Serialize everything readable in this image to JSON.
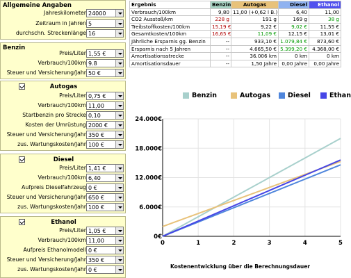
{
  "general": {
    "title": "Allgemeine Angaben",
    "rows": [
      {
        "label": "Jahreskilometer",
        "value": "24000"
      },
      {
        "label": "Zeitraum in Jahren",
        "value": "5"
      },
      {
        "label": "durchschn. Streckenlänge",
        "value": "16"
      }
    ]
  },
  "benzin": {
    "title": "Benzin",
    "rows": [
      {
        "label": "Preis/Liter",
        "value": "1,55 €"
      },
      {
        "label": "Verbrauch/100km",
        "value": "9.8"
      },
      {
        "label": "Steuer und Versicherung/Jahr",
        "value": "50 €"
      }
    ]
  },
  "autogas": {
    "title": "Autogas",
    "rows": [
      {
        "label": "Preis/Liter",
        "value": "0,75 €"
      },
      {
        "label": "Verbrauch/100km",
        "value": "11,00"
      },
      {
        "label": "Startbenzin pro Strecke",
        "value": "0,10"
      },
      {
        "label": "Kosten der Umrüstung",
        "value": "2000 €"
      },
      {
        "label": "Steuer und Versicherung/Jahr",
        "value": "350 €"
      },
      {
        "label": "zus. Wartungskosten/Jahr",
        "value": "100 €"
      }
    ]
  },
  "diesel": {
    "title": "Diesel",
    "rows": [
      {
        "label": "Preis/Liter",
        "value": "1,41 €"
      },
      {
        "label": "Verbrauch/100km",
        "value": "6,40"
      },
      {
        "label": "Aufpreis Dieselfahrzeug",
        "value": "0 €"
      },
      {
        "label": "Steuer und Versicherung/Jahr",
        "value": "650 €"
      },
      {
        "label": "zus. Wartungskosten/Jahr",
        "value": "100 €"
      }
    ]
  },
  "ethanol": {
    "title": "Ethanol",
    "rows": [
      {
        "label": "Preis/Liter",
        "value": "1,05 €"
      },
      {
        "label": "Verbrauch/100km",
        "value": "11,00"
      },
      {
        "label": "Aufpreis Ethanolmodell",
        "value": "0 €"
      },
      {
        "label": "Steuer und Versicherung/Jahr",
        "value": "350 €"
      },
      {
        "label": "zus. Wartungskosten/Jahr",
        "value": "0 €"
      }
    ]
  },
  "results": {
    "headers": [
      "Ergebnis",
      "Benzin",
      "Autogas",
      "Diesel",
      "Ethanol"
    ],
    "rows": [
      [
        "Verbrauch/100km",
        "9,80",
        "11,00 (+0,62 l B.)",
        "6,40",
        "11,00"
      ],
      [
        "CO2 Ausstoß/km",
        "228 g",
        "191 g",
        "169 g",
        "38 g"
      ],
      [
        "Treibstoffkosten/100km",
        "15,19 €",
        "9,22 €",
        "9,02 €",
        "11,55 €"
      ],
      [
        "Gesamtkosten/100km",
        "16,65 €",
        "11,09 €",
        "12,15 €",
        "13,01 €"
      ],
      [
        "Jährliche Ersparnis gg. Benzin",
        "--",
        "933,10 €",
        "1.079,84 €",
        "873,60 €"
      ],
      [
        "Ersparnis nach 5 Jahren",
        "--",
        "4.665,50 €",
        "5.399,20 €",
        "4.368,00 €"
      ],
      [
        "Amortisationsstrecke",
        "--",
        "36.006 km",
        "0 km",
        "0 km"
      ],
      [
        "Amortisationsdauer",
        "--",
        "1,50 Jahre",
        "0,00 Jahre",
        "0,00 Jahre"
      ]
    ]
  },
  "colors": {
    "panel_bg": "#ffffcc",
    "benzin": "#a8d0cc",
    "autogas": "#e8c27a",
    "diesel": "#4f86dc",
    "ethanol": "#4646e6",
    "red_text": "#b00000",
    "green_text": "#009900"
  },
  "chart_data": {
    "type": "line",
    "title": "Kostenentwicklung über die Berechnungsdauer",
    "xlabel": "",
    "ylabel": "",
    "x": [
      0,
      1,
      2,
      3,
      4,
      5
    ],
    "xlim": [
      0,
      5
    ],
    "ylim": [
      0,
      24000
    ],
    "yticks": [
      0,
      6000,
      12000,
      18000,
      24000
    ],
    "ytick_labels": [
      "0€",
      "6.000€",
      "12.000€",
      "18.000€",
      "24.000€"
    ],
    "xtick_labels": [
      "0",
      "1",
      "2",
      "3",
      "4",
      "5"
    ],
    "grid": true,
    "legend": "top",
    "series": [
      {
        "name": "Benzin",
        "color": "#a8d0cc",
        "values": [
          0,
          4000,
          8000,
          12000,
          16000,
          20000
        ]
      },
      {
        "name": "Autogas",
        "color": "#e8c27a",
        "values": [
          2000,
          4660,
          7320,
          9980,
          12640,
          15300
        ]
      },
      {
        "name": "Diesel",
        "color": "#4f86dc",
        "values": [
          0,
          2920,
          5840,
          8760,
          11680,
          14600
        ]
      },
      {
        "name": "Ethanol",
        "color": "#4646e6",
        "values": [
          0,
          3120,
          6240,
          9360,
          12480,
          15600
        ]
      }
    ]
  }
}
